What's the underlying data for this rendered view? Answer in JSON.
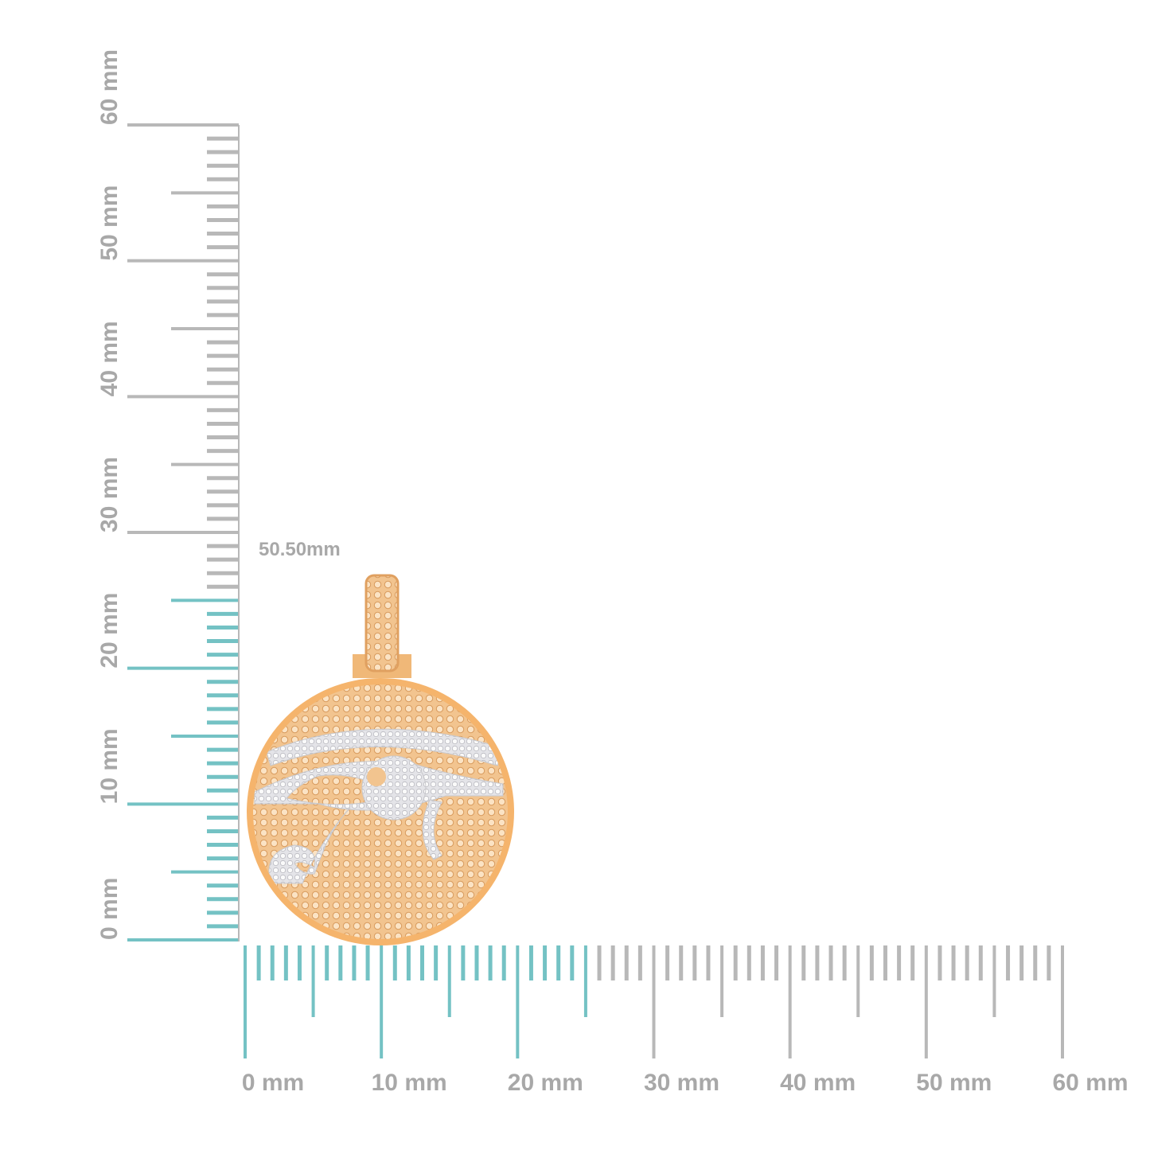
{
  "dimension_label": "50.50mm",
  "vertical_ruler": {
    "labels": [
      "0 mm",
      "10 mm",
      "20 mm",
      "30 mm",
      "40 mm",
      "50 mm",
      "60 mm"
    ]
  },
  "horizontal_ruler": {
    "labels": [
      "0 mm",
      "10 mm",
      "20 mm",
      "30 mm",
      "40 mm",
      "50 mm",
      "60 mm"
    ]
  }
}
